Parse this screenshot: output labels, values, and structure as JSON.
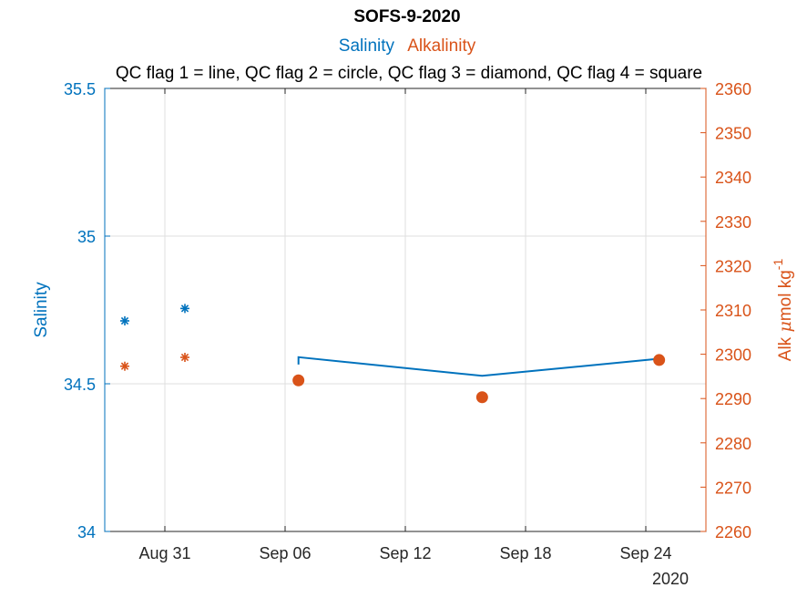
{
  "chart_data": {
    "type": "line",
    "title": "SOFS-9-2020",
    "subtitle_salinity": "Salinity",
    "subtitle_alkalinity": "Alkalinity",
    "subtitle_qc": "QC flag 1 = line, QC flag 2 = circle, QC flag 3 = diamond, QC flag 4 = square",
    "ylabel_left": "Salinity",
    "ylabel_right_main": "Alk ",
    "ylabel_right_mu": "μ",
    "ylabel_right_rest": "mol kg",
    "ylabel_right_sup": "-1",
    "year_label": "2020",
    "x_ticks": [
      "Aug 31",
      "Sep 06",
      "Sep 12",
      "Sep 18",
      "Sep 24"
    ],
    "x_tick_dates": [
      "2020-08-31",
      "2020-09-06",
      "2020-09-12",
      "2020-09-18",
      "2020-09-24"
    ],
    "xlim": [
      "2020-08-28",
      "2020-09-27"
    ],
    "ylim_left": [
      34,
      35.5
    ],
    "ylim_right": [
      2260,
      2360
    ],
    "y_ticks_left": [
      "34",
      "34.5",
      "35",
      "35.5"
    ],
    "y_ticks_right": [
      "2260",
      "2270",
      "2280",
      "2290",
      "2300",
      "2310",
      "2320",
      "2330",
      "2340",
      "2350",
      "2360"
    ],
    "grid": true,
    "colors": {
      "salinity": "#0072BD",
      "alkalinity": "#D95319"
    },
    "series": [
      {
        "name": "Salinity",
        "axis": "left",
        "points": [
          {
            "x": "2020-08-29",
            "y": 34.713,
            "marker": "asterisk"
          },
          {
            "x": "2020-09-01",
            "y": 34.755,
            "marker": "asterisk"
          },
          {
            "x": "2020-09-06 16:00",
            "y": 34.565,
            "marker": "line"
          },
          {
            "x": "2020-09-06 16:00",
            "y": 34.59,
            "marker": "line"
          },
          {
            "x": "2020-09-15 20:00",
            "y": 34.527,
            "marker": "line"
          },
          {
            "x": "2020-09-24 16:00",
            "y": 34.585,
            "marker": "line"
          }
        ]
      },
      {
        "name": "Alkalinity",
        "axis": "right",
        "points": [
          {
            "x": "2020-08-29",
            "y": 2297.3,
            "marker": "asterisk"
          },
          {
            "x": "2020-09-01",
            "y": 2299.3,
            "marker": "asterisk"
          },
          {
            "x": "2020-09-06 16:00",
            "y": 2294.1,
            "marker": "circle"
          },
          {
            "x": "2020-09-15 20:00",
            "y": 2290.3,
            "marker": "circle"
          },
          {
            "x": "2020-09-24 16:00",
            "y": 2298.7,
            "marker": "circle"
          }
        ]
      }
    ]
  }
}
